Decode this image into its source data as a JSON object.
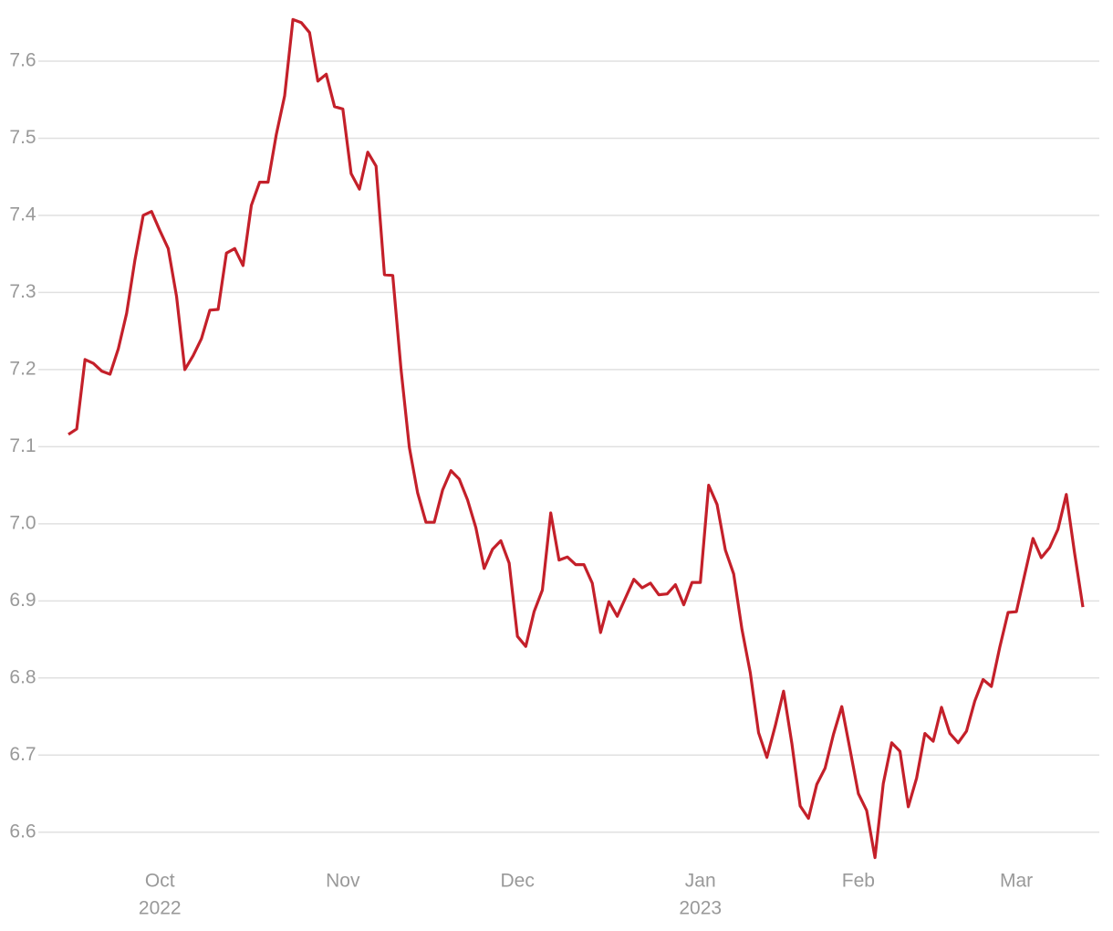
{
  "chart_data": {
    "type": "line",
    "color": "#c4202a",
    "grid": true,
    "ylim": [
      6.55,
      7.67
    ],
    "yticks": [
      6.6,
      6.7,
      6.8,
      6.9,
      {
        "value": 7,
        "label": "7.0"
      },
      7.1,
      7.2,
      7.3,
      7.4,
      7.5,
      7.6
    ],
    "categories": [
      null,
      null,
      null,
      null,
      null,
      null,
      null,
      null,
      null,
      null,
      null,
      "Oct",
      null,
      null,
      null,
      null,
      null,
      null,
      null,
      null,
      null,
      null,
      null,
      null,
      null,
      null,
      null,
      null,
      null,
      null,
      null,
      null,
      null,
      "Nov",
      null,
      null,
      null,
      null,
      null,
      null,
      null,
      null,
      null,
      null,
      null,
      null,
      null,
      null,
      null,
      null,
      null,
      null,
      null,
      null,
      "Dec",
      null,
      null,
      null,
      null,
      null,
      null,
      null,
      null,
      null,
      null,
      null,
      null,
      null,
      null,
      null,
      null,
      null,
      null,
      null,
      null,
      null,
      "Jan",
      null,
      null,
      null,
      null,
      null,
      null,
      null,
      null,
      null,
      null,
      null,
      null,
      null,
      null,
      null,
      null,
      null,
      null,
      "Feb",
      null,
      null,
      null,
      null,
      null,
      null,
      null,
      null,
      null,
      null,
      null,
      null,
      null,
      null,
      null,
      null,
      null,
      null,
      "Mar",
      null,
      null,
      null,
      null,
      null,
      null,
      null,
      null
    ],
    "category_years": [
      null,
      null,
      null,
      null,
      null,
      null,
      null,
      null,
      null,
      null,
      null,
      "2022",
      null,
      null,
      null,
      null,
      null,
      null,
      null,
      null,
      null,
      null,
      null,
      null,
      null,
      null,
      null,
      null,
      null,
      null,
      null,
      null,
      null,
      null,
      null,
      null,
      null,
      null,
      null,
      null,
      null,
      null,
      null,
      null,
      null,
      null,
      null,
      null,
      null,
      null,
      null,
      null,
      null,
      null,
      null,
      null,
      null,
      null,
      null,
      null,
      null,
      null,
      null,
      null,
      null,
      null,
      null,
      null,
      null,
      null,
      null,
      null,
      null,
      null,
      null,
      null,
      "2023",
      null,
      null,
      null,
      null,
      null,
      null,
      null,
      null,
      null,
      null,
      null,
      null,
      null,
      null,
      null,
      null,
      null,
      null,
      null,
      null,
      null,
      null,
      null,
      null,
      null,
      null,
      null,
      null,
      null,
      null,
      null,
      null,
      null,
      null,
      null,
      null,
      null,
      null,
      null,
      null,
      null,
      null,
      null,
      null,
      null,
      null
    ],
    "values": [
      7.116,
      7.123,
      7.213,
      7.208,
      7.198,
      7.194,
      7.227,
      7.273,
      7.342,
      7.4,
      7.405,
      7.38,
      7.357,
      7.295,
      7.2,
      7.218,
      7.24,
      7.277,
      7.278,
      7.351,
      7.357,
      7.335,
      7.413,
      7.443,
      7.443,
      7.505,
      7.555,
      7.654,
      7.65,
      7.637,
      7.574,
      7.583,
      7.541,
      7.538,
      7.454,
      7.434,
      7.482,
      7.464,
      7.323,
      7.322,
      7.2,
      7.099,
      7.04,
      7.002,
      7.002,
      7.044,
      7.069,
      7.058,
      7.031,
      6.995,
      6.942,
      6.967,
      6.978,
      6.949,
      6.854,
      6.841,
      6.886,
      6.914,
      7.014,
      6.953,
      6.957,
      6.947,
      6.947,
      6.923,
      6.859,
      6.899,
      6.88,
      6.904,
      6.928,
      6.917,
      6.923,
      6.908,
      6.909,
      6.921,
      6.895,
      6.924,
      6.924,
      7.05,
      7.025,
      6.966,
      6.935,
      6.863,
      6.807,
      6.729,
      6.697,
      6.738,
      6.783,
      6.715,
      6.634,
      6.618,
      6.662,
      6.683,
      6.727,
      6.763,
      6.707,
      6.65,
      6.628,
      6.567,
      6.663,
      6.716,
      6.705,
      6.633,
      6.67,
      6.728,
      6.718,
      6.762,
      6.728,
      6.716,
      6.731,
      6.77,
      6.798,
      6.789,
      6.84,
      6.885,
      6.886,
      6.934,
      6.981,
      6.956,
      6.969,
      6.993,
      7.038,
      6.962,
      6.892
    ]
  }
}
